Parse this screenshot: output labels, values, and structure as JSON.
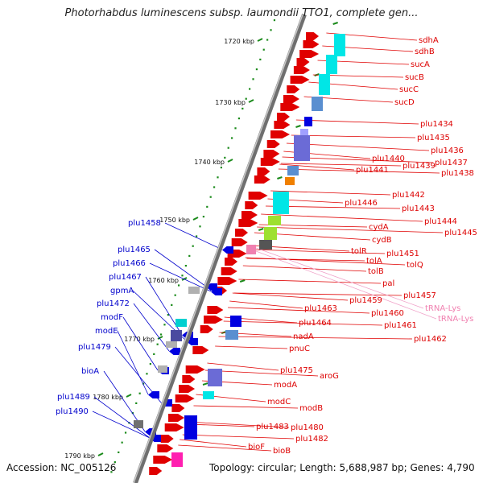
{
  "title": "Photorhabdus luminescens subsp. laumondii TTO1, complete gen...",
  "accession": "Accession: NC_005126",
  "summary": "Topology: circular; Length: 5,688,987 bp; Genes: 4,790",
  "colors": {
    "forward": "#e00000",
    "reverse": "#0000e0",
    "rna": "#f080b0",
    "backbone": "#808080",
    "ticks": "#1a8a1a"
  },
  "scale": [
    {
      "label": "1720 kbp",
      "kbp": 1720
    },
    {
      "label": "1730 kbp",
      "kbp": 1730
    },
    {
      "label": "1740 kbp",
      "kbp": 1740
    },
    {
      "label": "1750 kbp",
      "kbp": 1750
    },
    {
      "label": "1760 kbp",
      "kbp": 1760
    },
    {
      "label": "1770 kbp",
      "kbp": 1770
    },
    {
      "label": "1780 kbp",
      "kbp": 1780
    },
    {
      "label": "1790 kbp",
      "kbp": 1790
    }
  ],
  "forward_labels": [
    "sdhA",
    "sdhB",
    "sucA",
    "sucB",
    "sucC",
    "sucD",
    "plu1434",
    "plu1435",
    "plu1436",
    "plu1437",
    "plu1438",
    "plu1439",
    "plu1440",
    "plu1441",
    "plu1442",
    "plu1443",
    "plu1444",
    "plu1445",
    "plu1446",
    "cydA",
    "cydB",
    "tolR",
    "plu1451",
    "tolA",
    "tolQ",
    "tolB",
    "pal",
    "plu1457",
    "plu1459",
    "plu1460",
    "plu1461",
    "plu1462",
    "plu1463",
    "plu1464",
    "nadA",
    "pnuC",
    "plu1475",
    "aroG",
    "modA",
    "modB",
    "modC",
    "plu1480",
    "plu1482",
    "plu1483",
    "bioF",
    "bioB"
  ],
  "rna_labels": [
    "tRNA-Lys",
    "tRNA-Lys"
  ],
  "reverse_labels": [
    "plu1458",
    "plu1465",
    "plu1466",
    "plu1467",
    "gpmA",
    "plu1472",
    "modF",
    "modE",
    "plu1479",
    "bioA",
    "plu1489",
    "plu1490"
  ]
}
